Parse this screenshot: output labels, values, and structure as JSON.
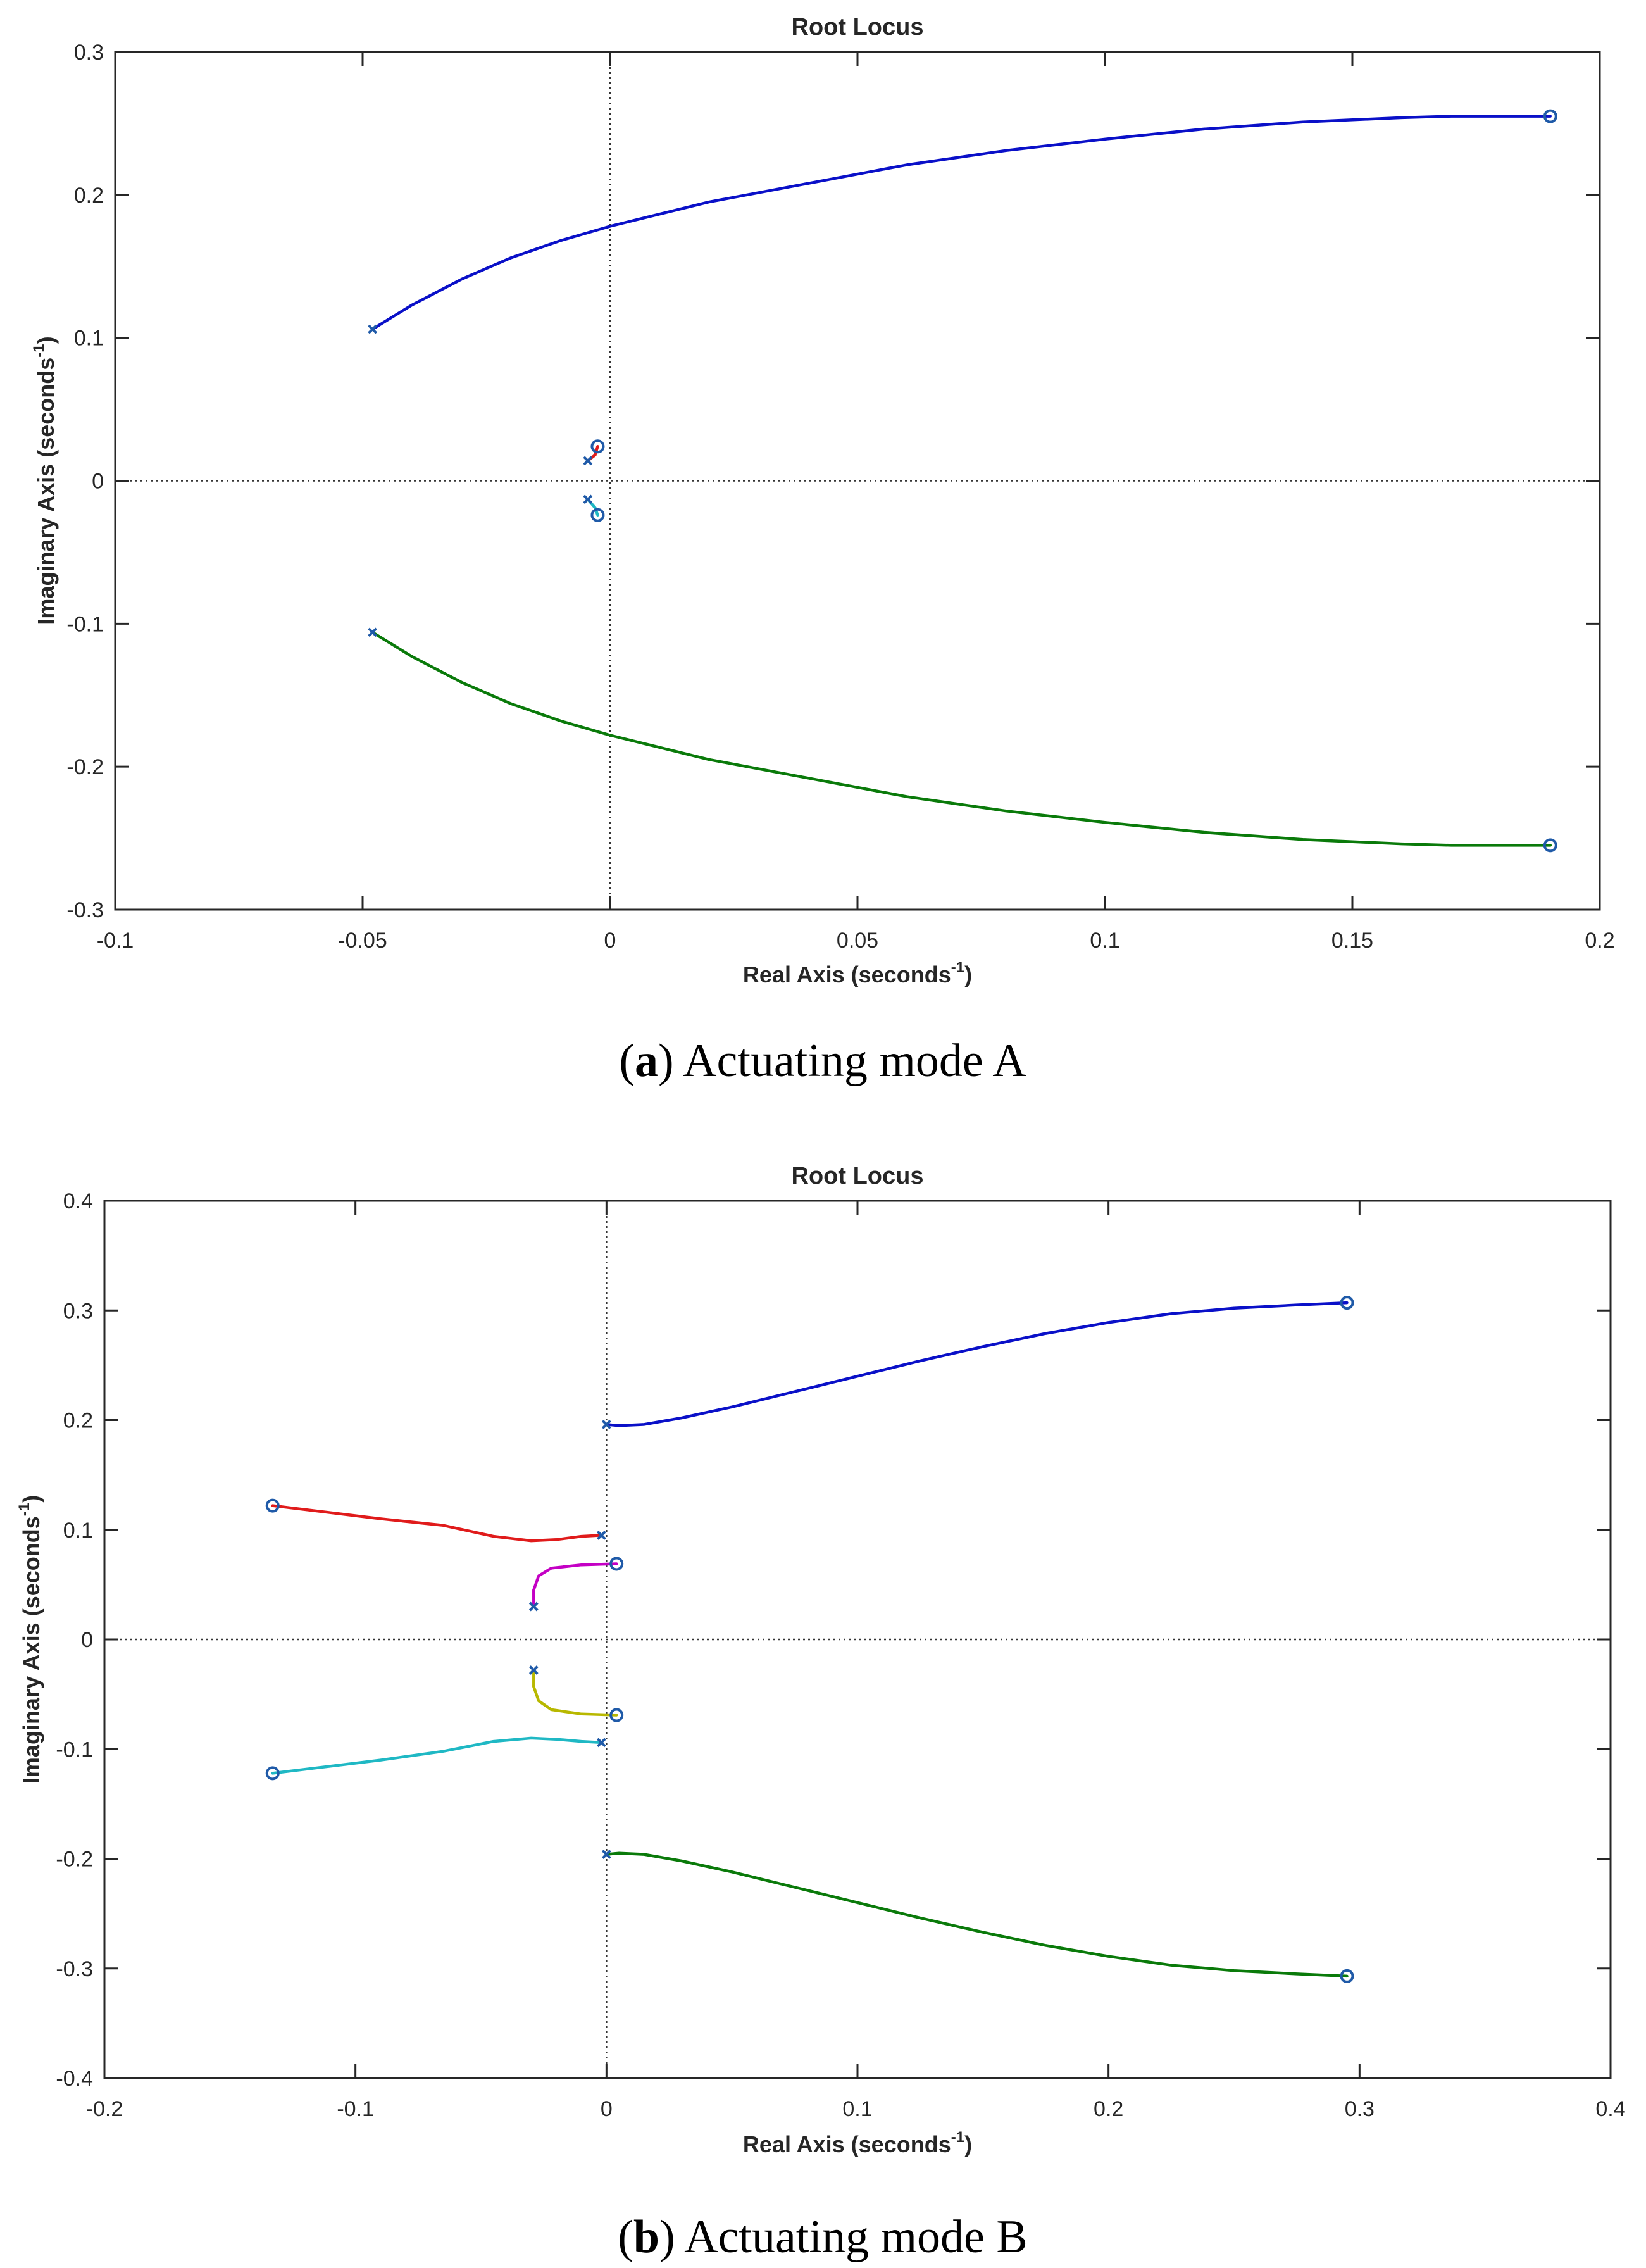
{
  "chart_data": [
    {
      "type": "line",
      "plot_kind": "root locus",
      "title": "Root Locus",
      "xlabel": "Real Axis (seconds",
      "ylabel": "Imaginary Axis (seconds",
      "unit_superscript": "-1",
      "close_paren": ")",
      "xlim": [
        -0.1,
        0.2
      ],
      "ylim": [
        -0.3,
        0.3
      ],
      "xticks": [
        -0.1,
        -0.05,
        0,
        0.05,
        0.1,
        0.15,
        0.2
      ],
      "xtick_labels": [
        "-0.1",
        "-0.05",
        "0",
        "0.05",
        "0.1",
        "0.15",
        "0.2"
      ],
      "yticks": [
        -0.3,
        -0.2,
        -0.1,
        0,
        0.1,
        0.2,
        0.3
      ],
      "ytick_labels": [
        "-0.3",
        "-0.2",
        "-0.1",
        "0",
        "0.1",
        "0.2",
        "0.3"
      ],
      "caption_letter": "a",
      "caption_rest": "Actuating mode A",
      "series": [
        {
          "name": "branch-1",
          "color": "#0a10c8",
          "points": [
            [
              -0.048,
              0.106
            ],
            [
              -0.04,
              0.123
            ],
            [
              -0.03,
              0.141
            ],
            [
              -0.02,
              0.156
            ],
            [
              -0.01,
              0.168
            ],
            [
              0,
              0.178
            ],
            [
              0.02,
              0.195
            ],
            [
              0.04,
              0.208
            ],
            [
              0.06,
              0.221
            ],
            [
              0.08,
              0.231
            ],
            [
              0.1,
              0.239
            ],
            [
              0.12,
              0.246
            ],
            [
              0.14,
              0.251
            ],
            [
              0.16,
              0.254
            ],
            [
              0.17,
              0.255
            ],
            [
              0.19,
              0.255
            ]
          ]
        },
        {
          "name": "branch-2",
          "color": "#e01b1b",
          "points": [
            [
              -0.0045,
              0.014
            ],
            [
              -0.003,
              0.018
            ],
            [
              -0.0025,
              0.024
            ]
          ]
        },
        {
          "name": "branch-3",
          "color": "#1fb8c4",
          "points": [
            [
              -0.0045,
              -0.013
            ],
            [
              -0.003,
              -0.019
            ],
            [
              -0.0025,
              -0.024
            ]
          ]
        },
        {
          "name": "branch-4",
          "color": "#0a7a0a",
          "points": [
            [
              -0.048,
              -0.106
            ],
            [
              -0.04,
              -0.123
            ],
            [
              -0.03,
              -0.141
            ],
            [
              -0.02,
              -0.156
            ],
            [
              -0.01,
              -0.168
            ],
            [
              0,
              -0.178
            ],
            [
              0.02,
              -0.195
            ],
            [
              0.04,
              -0.208
            ],
            [
              0.06,
              -0.221
            ],
            [
              0.08,
              -0.231
            ],
            [
              0.1,
              -0.239
            ],
            [
              0.12,
              -0.246
            ],
            [
              0.14,
              -0.251
            ],
            [
              0.16,
              -0.254
            ],
            [
              0.17,
              -0.255
            ],
            [
              0.19,
              -0.255
            ]
          ]
        }
      ],
      "poles": [
        [
          -0.048,
          0.106
        ],
        [
          -0.048,
          -0.106
        ],
        [
          -0.0045,
          0.014
        ],
        [
          -0.0045,
          -0.013
        ]
      ],
      "zeros": [
        [
          0.19,
          0.255
        ],
        [
          0.19,
          -0.255
        ],
        [
          -0.0025,
          0.024
        ],
        [
          -0.0025,
          -0.024
        ]
      ]
    },
    {
      "type": "line",
      "plot_kind": "root locus",
      "title": "Root Locus",
      "xlabel": "Real Axis (seconds",
      "ylabel": "Imaginary Axis (seconds",
      "unit_superscript": "-1",
      "close_paren": ")",
      "xlim": [
        -0.2,
        0.4
      ],
      "ylim": [
        -0.4,
        0.4
      ],
      "xticks": [
        -0.2,
        -0.1,
        0,
        0.1,
        0.2,
        0.3,
        0.4
      ],
      "xtick_labels": [
        "-0.2",
        "-0.1",
        "0",
        "0.1",
        "0.2",
        "0.3",
        "0.4"
      ],
      "yticks": [
        -0.4,
        -0.3,
        -0.2,
        -0.1,
        0,
        0.1,
        0.2,
        0.3,
        0.4
      ],
      "ytick_labels": [
        "-0.4",
        "-0.3",
        "-0.2",
        "-0.1",
        "0",
        "0.1",
        "0.2",
        "0.3",
        "0.4"
      ],
      "caption_letter": "b",
      "caption_rest": "Actuating mode B",
      "series": [
        {
          "name": "branch-1",
          "color": "#0a10c8",
          "points": [
            [
              0,
              0.196
            ],
            [
              0.005,
              0.195
            ],
            [
              0.015,
              0.196
            ],
            [
              0.03,
              0.202
            ],
            [
              0.05,
              0.212
            ],
            [
              0.075,
              0.226
            ],
            [
              0.1,
              0.24
            ],
            [
              0.125,
              0.254
            ],
            [
              0.15,
              0.267
            ],
            [
              0.175,
              0.279
            ],
            [
              0.2,
              0.289
            ],
            [
              0.225,
              0.297
            ],
            [
              0.25,
              0.302
            ],
            [
              0.275,
              0.305
            ],
            [
              0.295,
              0.307
            ]
          ]
        },
        {
          "name": "branch-2",
          "color": "#e01b1b",
          "points": [
            [
              -0.133,
              0.122
            ],
            [
              -0.115,
              0.117
            ],
            [
              -0.09,
              0.11
            ],
            [
              -0.065,
              0.104
            ],
            [
              -0.045,
              0.094
            ],
            [
              -0.03,
              0.09
            ],
            [
              -0.02,
              0.091
            ],
            [
              -0.01,
              0.094
            ],
            [
              -0.002,
              0.095
            ]
          ]
        },
        {
          "name": "branch-3",
          "color": "#c400c4",
          "points": [
            [
              -0.029,
              0.03
            ],
            [
              -0.029,
              0.045
            ],
            [
              -0.027,
              0.058
            ],
            [
              -0.022,
              0.065
            ],
            [
              -0.01,
              0.068
            ],
            [
              0.004,
              0.069
            ]
          ]
        },
        {
          "name": "branch-4",
          "color": "#b8b800",
          "points": [
            [
              -0.029,
              -0.028
            ],
            [
              -0.029,
              -0.043
            ],
            [
              -0.027,
              -0.056
            ],
            [
              -0.022,
              -0.064
            ],
            [
              -0.01,
              -0.068
            ],
            [
              0.004,
              -0.069
            ]
          ]
        },
        {
          "name": "branch-5",
          "color": "#1fb8c4",
          "points": [
            [
              -0.133,
              -0.122
            ],
            [
              -0.115,
              -0.117
            ],
            [
              -0.09,
              -0.11
            ],
            [
              -0.065,
              -0.102
            ],
            [
              -0.045,
              -0.093
            ],
            [
              -0.03,
              -0.09
            ],
            [
              -0.02,
              -0.091
            ],
            [
              -0.01,
              -0.093
            ],
            [
              -0.002,
              -0.094
            ]
          ]
        },
        {
          "name": "branch-6",
          "color": "#0a7a0a",
          "points": [
            [
              0,
              -0.196
            ],
            [
              0.005,
              -0.195
            ],
            [
              0.015,
              -0.196
            ],
            [
              0.03,
              -0.202
            ],
            [
              0.05,
              -0.212
            ],
            [
              0.075,
              -0.226
            ],
            [
              0.1,
              -0.24
            ],
            [
              0.125,
              -0.254
            ],
            [
              0.15,
              -0.267
            ],
            [
              0.175,
              -0.279
            ],
            [
              0.2,
              -0.289
            ],
            [
              0.225,
              -0.297
            ],
            [
              0.25,
              -0.302
            ],
            [
              0.275,
              -0.305
            ],
            [
              0.295,
              -0.307
            ]
          ]
        }
      ],
      "poles": [
        [
          0,
          0.196
        ],
        [
          0,
          -0.196
        ],
        [
          -0.002,
          0.095
        ],
        [
          -0.002,
          -0.094
        ],
        [
          -0.029,
          0.03
        ],
        [
          -0.029,
          -0.028
        ]
      ],
      "zeros": [
        [
          0.295,
          0.307
        ],
        [
          0.295,
          -0.307
        ],
        [
          -0.133,
          0.122
        ],
        [
          -0.133,
          -0.122
        ],
        [
          0.004,
          0.069
        ],
        [
          0.004,
          -0.069
        ]
      ]
    }
  ]
}
